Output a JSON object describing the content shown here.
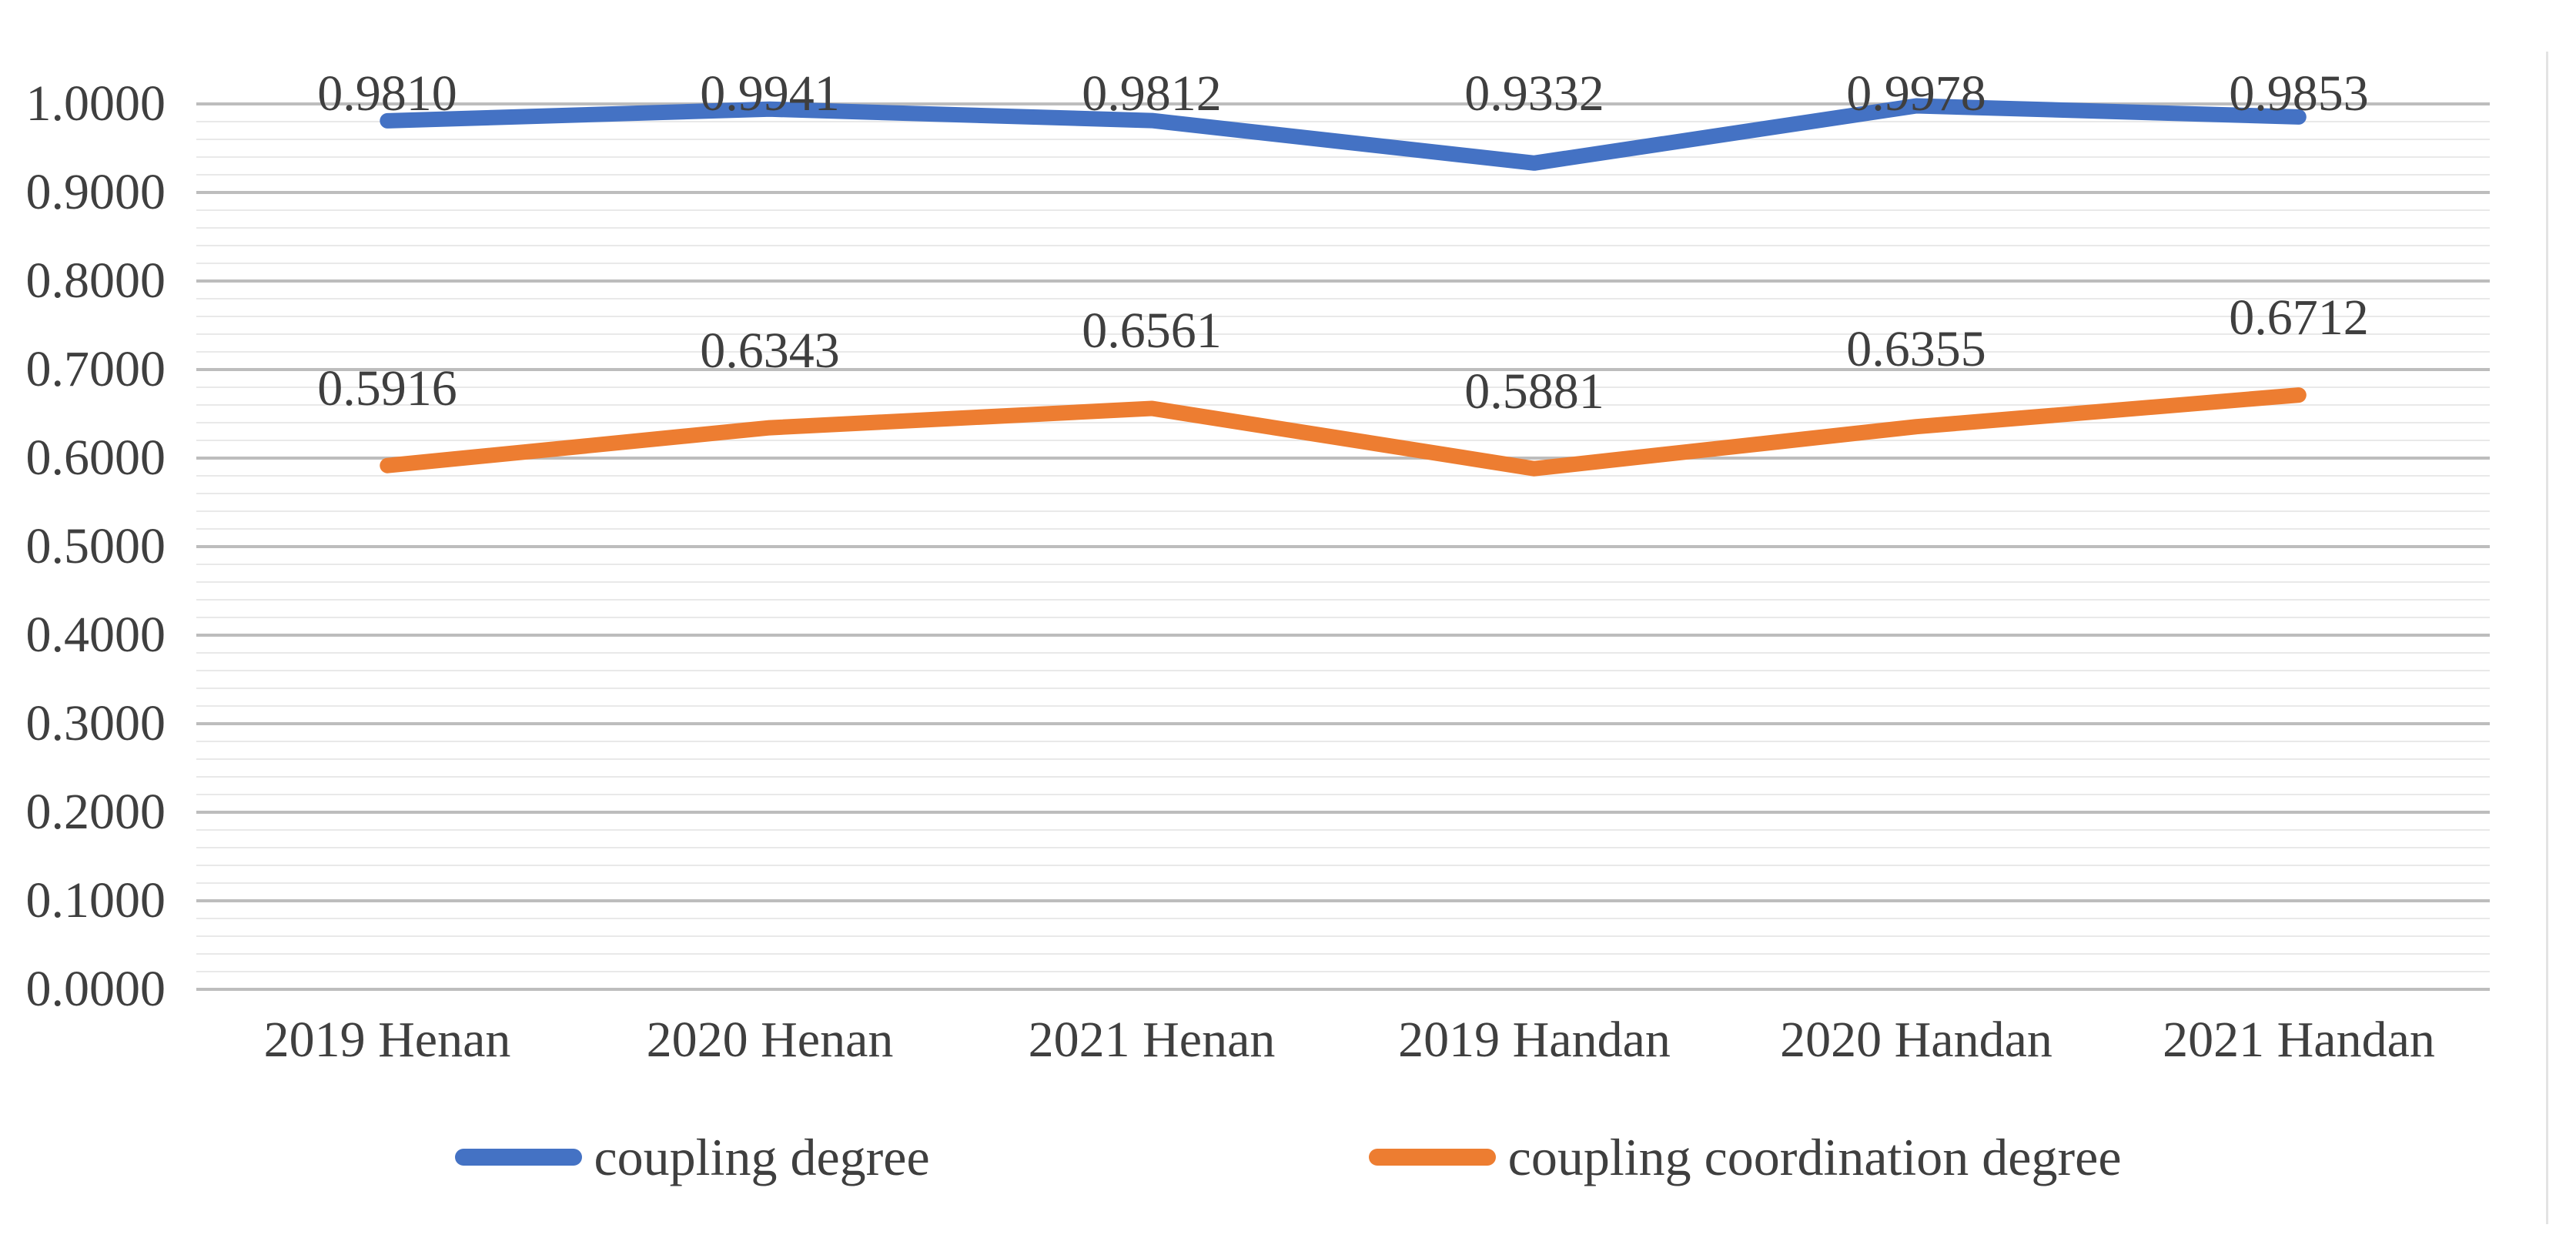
{
  "chart_data": {
    "type": "line",
    "title": "",
    "xlabel": "",
    "ylabel": "",
    "categories": [
      "2019 Henan",
      "2020 Henan",
      "2021 Henan",
      "2019 Handan",
      "2020 Handan",
      "2021 Handan"
    ],
    "series": [
      {
        "name": "coupling degree",
        "color": "#4472C4",
        "values": [
          0.981,
          0.9941,
          0.9812,
          0.9332,
          0.9978,
          0.9853
        ],
        "data_labels": [
          "0.9810",
          "0.9941",
          "0.9812",
          "0.9332",
          "0.9978",
          "0.9853"
        ]
      },
      {
        "name": "coupling coordination degree",
        "color": "#ED7D31",
        "values": [
          0.5916,
          0.6343,
          0.6561,
          0.5881,
          0.6355,
          0.6712
        ],
        "data_labels": [
          "0.5916",
          "0.6343",
          "0.6561",
          "0.5881",
          "0.6355",
          "0.6712"
        ]
      }
    ],
    "ylim": [
      0.0,
      1.0
    ],
    "y_major_step": 0.1,
    "y_minor_step": 0.02,
    "y_tick_labels": [
      "1.0000",
      "0.9000",
      "0.8000",
      "0.7000",
      "0.6000",
      "0.5000",
      "0.4000",
      "0.3000",
      "0.2000",
      "0.1000",
      "0.0000"
    ],
    "grid": "horizontal major and minor gridlines",
    "legend_position": "bottom-center"
  },
  "colors": {
    "background": "#ffffff",
    "text": "#3f3f3f",
    "gridline_major": "#bdbdbd",
    "gridline_minor": "#e9e9e9",
    "series_blue": "#4472C4",
    "series_orange": "#ED7D31",
    "chart_right_border": "#e3e3e3"
  }
}
